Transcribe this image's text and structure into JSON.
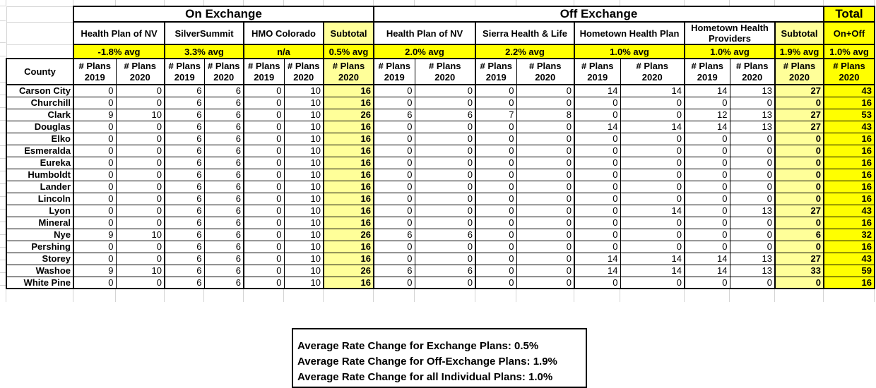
{
  "sheet": {
    "sections": {
      "on": {
        "label": "On Exchange"
      },
      "off": {
        "label": "Off Exchange"
      },
      "total": {
        "label": "Total"
      }
    },
    "carriers": [
      {
        "section": "on",
        "label": "Health Plan of NV",
        "avg": "-1.8% avg",
        "span": 2,
        "style": "plain"
      },
      {
        "section": "on",
        "label": "SilverSummit",
        "avg": "3.3% avg",
        "span": 2,
        "style": "plain"
      },
      {
        "section": "on",
        "label": "HMO Colorado",
        "avg": "n/a",
        "span": 2,
        "style": "plain"
      },
      {
        "section": "on",
        "label": "Subtotal",
        "avg": "0.5% avg",
        "span": 1,
        "style": "light"
      },
      {
        "section": "off",
        "label": "Health Plan of NV",
        "avg": "2.0% avg",
        "span": 2,
        "style": "plain"
      },
      {
        "section": "off",
        "label": "Sierra Health & Life",
        "avg": "2.2% avg",
        "span": 2,
        "style": "plain"
      },
      {
        "section": "off",
        "label": "Hometown Health Plan",
        "avg": "1.0% avg",
        "span": 2,
        "style": "plain"
      },
      {
        "section": "off",
        "label": "Hometown Health Providers",
        "avg": "1.0% avg",
        "span": 2,
        "style": "plain"
      },
      {
        "section": "off",
        "label": "Subtotal",
        "avg": "1.9% avg",
        "span": 1,
        "style": "light"
      },
      {
        "section": "total",
        "label": "On+Off",
        "avg": "1.0% avg",
        "span": 1,
        "style": "bright"
      }
    ],
    "county_header": "County",
    "plans_label": "# Plans",
    "col_years": [
      "2019",
      "2020",
      "2019",
      "2020",
      "2019",
      "2020",
      "2020",
      "2019",
      "2020",
      "2019",
      "2020",
      "2019",
      "2020",
      "2019",
      "2020",
      "2020",
      "2020"
    ],
    "rows": [
      {
        "county": "Carson City",
        "values": [
          0,
          0,
          6,
          6,
          0,
          10,
          16,
          0,
          0,
          0,
          0,
          14,
          14,
          14,
          13,
          27,
          43
        ]
      },
      {
        "county": "Churchill",
        "values": [
          0,
          0,
          6,
          6,
          0,
          10,
          16,
          0,
          0,
          0,
          0,
          0,
          0,
          0,
          0,
          0,
          16
        ]
      },
      {
        "county": "Clark",
        "values": [
          9,
          10,
          6,
          6,
          0,
          10,
          26,
          6,
          6,
          7,
          8,
          0,
          0,
          12,
          13,
          27,
          53
        ]
      },
      {
        "county": "Douglas",
        "values": [
          0,
          0,
          6,
          6,
          0,
          10,
          16,
          0,
          0,
          0,
          0,
          14,
          14,
          14,
          13,
          27,
          43
        ]
      },
      {
        "county": "Elko",
        "values": [
          0,
          0,
          6,
          6,
          0,
          10,
          16,
          0,
          0,
          0,
          0,
          0,
          0,
          0,
          0,
          0,
          16
        ]
      },
      {
        "county": "Esmeralda",
        "values": [
          0,
          0,
          6,
          6,
          0,
          10,
          16,
          0,
          0,
          0,
          0,
          0,
          0,
          0,
          0,
          0,
          16
        ]
      },
      {
        "county": "Eureka",
        "values": [
          0,
          0,
          6,
          6,
          0,
          10,
          16,
          0,
          0,
          0,
          0,
          0,
          0,
          0,
          0,
          0,
          16
        ]
      },
      {
        "county": "Humboldt",
        "values": [
          0,
          0,
          6,
          6,
          0,
          10,
          16,
          0,
          0,
          0,
          0,
          0,
          0,
          0,
          0,
          0,
          16
        ]
      },
      {
        "county": "Lander",
        "values": [
          0,
          0,
          6,
          6,
          0,
          10,
          16,
          0,
          0,
          0,
          0,
          0,
          0,
          0,
          0,
          0,
          16
        ]
      },
      {
        "county": "Lincoln",
        "values": [
          0,
          0,
          6,
          6,
          0,
          10,
          16,
          0,
          0,
          0,
          0,
          0,
          0,
          0,
          0,
          0,
          16
        ]
      },
      {
        "county": "Lyon",
        "values": [
          0,
          0,
          6,
          6,
          0,
          10,
          16,
          0,
          0,
          0,
          0,
          0,
          14,
          0,
          13,
          27,
          43
        ]
      },
      {
        "county": "Mineral",
        "values": [
          0,
          0,
          6,
          6,
          0,
          10,
          16,
          0,
          0,
          0,
          0,
          0,
          0,
          0,
          0,
          0,
          16
        ]
      },
      {
        "county": "Nye",
        "values": [
          9,
          10,
          6,
          6,
          0,
          10,
          26,
          6,
          6,
          0,
          0,
          0,
          0,
          0,
          0,
          6,
          32
        ]
      },
      {
        "county": "Pershing",
        "values": [
          0,
          0,
          6,
          6,
          0,
          10,
          16,
          0,
          0,
          0,
          0,
          0,
          0,
          0,
          0,
          0,
          16
        ]
      },
      {
        "county": "Storey",
        "values": [
          0,
          0,
          6,
          6,
          0,
          10,
          16,
          0,
          0,
          0,
          0,
          14,
          14,
          14,
          13,
          27,
          43
        ]
      },
      {
        "county": "Washoe",
        "values": [
          9,
          10,
          6,
          6,
          0,
          10,
          26,
          6,
          6,
          0,
          0,
          14,
          14,
          14,
          13,
          33,
          59
        ]
      },
      {
        "county": "White Pine",
        "values": [
          0,
          0,
          6,
          6,
          0,
          10,
          16,
          0,
          0,
          0,
          0,
          0,
          0,
          0,
          0,
          0,
          16
        ]
      }
    ]
  },
  "summary": {
    "lines": [
      "Average Rate Change for Exchange Plans: 0.5%",
      "Average Rate Change for Off-Exchange Plans: 1.9%",
      "Average Rate Change for all Individual Plans: 1.0%"
    ]
  },
  "colors": {
    "bright_yellow": "#FFFF00",
    "light_yellow": "#FFFF99",
    "grid_gray": "#d4d4d4",
    "border_black": "#000000"
  }
}
